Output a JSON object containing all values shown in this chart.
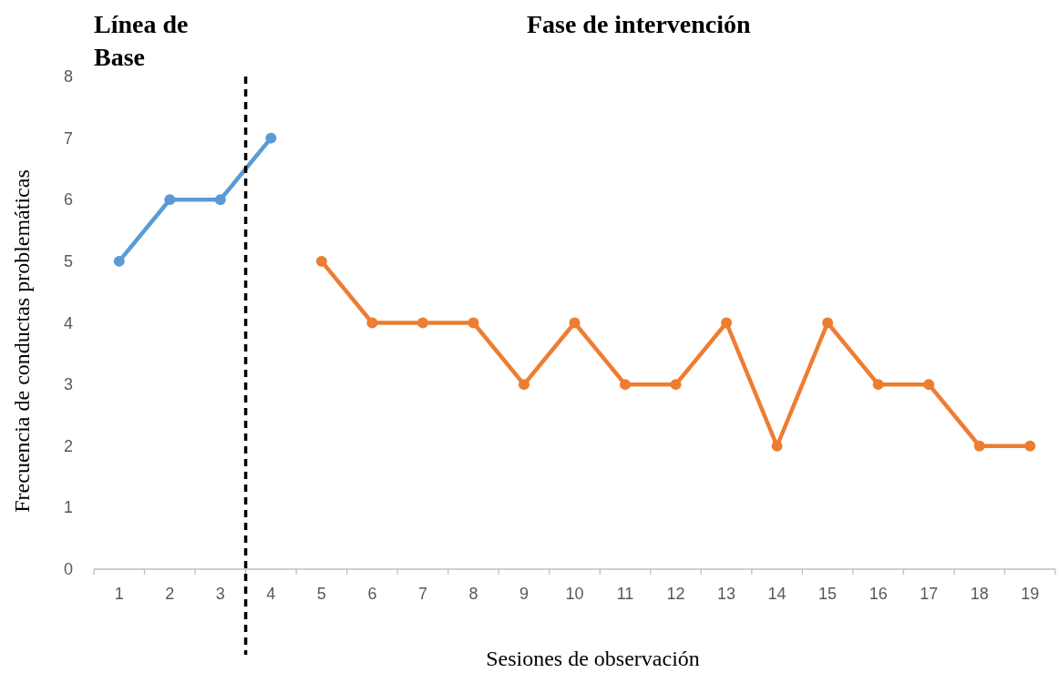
{
  "chart_data": {
    "type": "line",
    "xlabel": "Sesiones de observación",
    "ylabel": "Frecuencia de conductas problemáticas",
    "annotations": [
      "Línea de Base",
      "Fase de intervención"
    ],
    "series": [
      {
        "color": "#5b9bd5",
        "x": [
          1,
          2,
          3,
          4
        ],
        "values": [
          5,
          6,
          6,
          7
        ]
      },
      {
        "color": "#ed7d31",
        "x": [
          5,
          6,
          7,
          8,
          9,
          10,
          11,
          12,
          13,
          14,
          15,
          16,
          17,
          18,
          19
        ],
        "values": [
          5,
          4,
          4,
          4,
          3,
          4,
          3,
          3,
          4,
          2,
          4,
          3,
          3,
          2,
          2
        ]
      }
    ],
    "xlim": [
      0.5,
      19.5
    ],
    "xticks": [
      1,
      2,
      3,
      4,
      5,
      6,
      7,
      8,
      9,
      10,
      11,
      12,
      13,
      14,
      15,
      16,
      17,
      18,
      19
    ],
    "ylim": [
      0,
      8
    ],
    "yticks": [
      0,
      1,
      2,
      3,
      4,
      5,
      6,
      7,
      8
    ],
    "ref_lines": [
      {
        "axis": "x",
        "value": 3.5,
        "color": "#000000",
        "line_style": "dashed"
      }
    ],
    "marker": "circle",
    "line_style": "solid",
    "grid": false
  }
}
